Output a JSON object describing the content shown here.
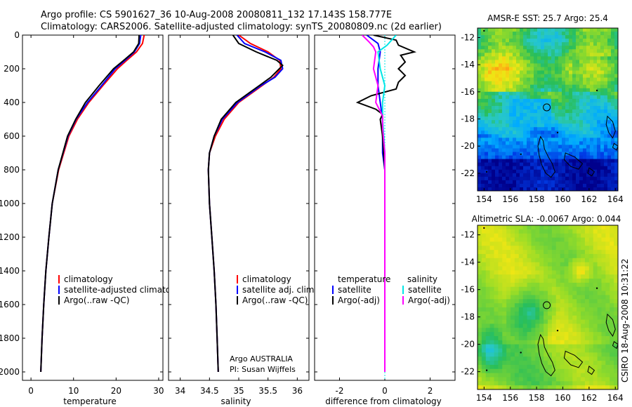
{
  "header": {
    "line1": "Argo profile: CS 5901627_36 10-Aug-2008 20080811_132 17.143S 158.777E",
    "line2": "Climatology: CARS2006. Satellite-adjusted climatology: synTS_20080809.nc (2d earlier)"
  },
  "credit": "CSIRO 18-Aug-2008 10:31:22",
  "colors": {
    "red": "#ff0000",
    "blue": "#0000ff",
    "black": "#000000",
    "cyan": "#00e6e6",
    "magenta": "#ff00ff"
  },
  "chart_data": [
    {
      "type": "line",
      "xlabel": "temperature",
      "xlim": [
        -2,
        31
      ],
      "xticks": [
        0,
        10,
        20,
        30
      ],
      "ylim": [
        2050,
        0
      ],
      "yticks": [
        0,
        200,
        400,
        600,
        800,
        1000,
        1200,
        1400,
        1600,
        1800,
        2000
      ],
      "legend": [
        "climatology",
        "satellite-adjusted climatology",
        "Argo(..raw -QC)"
      ],
      "series": [
        {
          "name": "climatology",
          "color": "red",
          "depth": [
            0,
            50,
            100,
            150,
            200,
            300,
            400,
            500,
            600,
            800,
            1000,
            1200,
            1400,
            1600,
            1800,
            2000
          ],
          "values": [
            26.6,
            26.2,
            24.8,
            22.5,
            20.3,
            16.9,
            13.6,
            10.9,
            8.9,
            6.5,
            5.0,
            4.2,
            3.5,
            3.0,
            2.6,
            2.3
          ]
        },
        {
          "name": "satellite-adjusted climatology",
          "color": "blue",
          "depth": [
            0,
            50,
            100,
            150,
            200,
            300,
            400,
            500,
            600,
            800,
            1000,
            1200,
            1400,
            1600,
            1800,
            2000
          ],
          "values": [
            25.8,
            25.5,
            24.3,
            22.1,
            19.8,
            16.6,
            13.3,
            10.6,
            8.7,
            6.4,
            5.0,
            4.2,
            3.5,
            3.0,
            2.6,
            2.3
          ]
        },
        {
          "name": "Argo(..raw -QC)",
          "color": "black",
          "depth": [
            0,
            50,
            100,
            150,
            200,
            300,
            400,
            500,
            600,
            800,
            1000,
            1200,
            1400,
            1600,
            1800,
            2000
          ],
          "values": [
            25.4,
            25.3,
            24.1,
            21.8,
            19.4,
            16.0,
            12.8,
            10.5,
            8.6,
            6.4,
            5.0,
            4.2,
            3.5,
            3.0,
            2.6,
            2.3
          ]
        }
      ]
    },
    {
      "type": "line",
      "xlabel": "salinity",
      "xlim": [
        33.8,
        36.2
      ],
      "xticks": [
        34,
        34.5,
        35,
        35.5,
        36
      ],
      "ylim": [
        2050,
        0
      ],
      "legend": [
        "climatology",
        "satellite adj. clim.",
        "Argo(..raw -QC)"
      ],
      "annotation": [
        "Argo AUSTRALIA",
        "PI: Susan Wijffels"
      ],
      "series": [
        {
          "name": "climatology",
          "color": "red",
          "depth": [
            0,
            50,
            100,
            150,
            200,
            250,
            300,
            400,
            500,
            600,
            700,
            800,
            1000,
            1200,
            1400,
            1600,
            1800,
            2000
          ],
          "values": [
            35.0,
            35.2,
            35.5,
            35.7,
            35.72,
            35.6,
            35.4,
            35.0,
            34.75,
            34.6,
            34.5,
            34.48,
            34.5,
            34.54,
            34.58,
            34.61,
            34.63,
            34.65
          ]
        },
        {
          "name": "satellite adj. clim.",
          "color": "blue",
          "depth": [
            0,
            50,
            100,
            150,
            200,
            250,
            300,
            400,
            500,
            600,
            700,
            800,
            1000,
            1200,
            1400,
            1600,
            1800,
            2000
          ],
          "values": [
            34.97,
            35.1,
            35.45,
            35.72,
            35.75,
            35.62,
            35.38,
            34.98,
            34.72,
            34.58,
            34.5,
            34.48,
            34.5,
            34.54,
            34.58,
            34.61,
            34.63,
            34.65
          ]
        },
        {
          "name": "Argo(..raw -QC)",
          "color": "black",
          "depth": [
            0,
            50,
            100,
            150,
            180,
            250,
            300,
            400,
            500,
            600,
            700,
            800,
            1000,
            1200,
            1400,
            1600,
            1800,
            2000
          ],
          "values": [
            34.9,
            35.0,
            35.3,
            35.65,
            35.75,
            35.55,
            35.35,
            34.95,
            34.7,
            34.58,
            34.5,
            34.48,
            34.5,
            34.54,
            34.58,
            34.61,
            34.63,
            34.65
          ]
        }
      ]
    },
    {
      "type": "line",
      "xlabel": "difference from climatology",
      "xlim": [
        -3.1,
        3.1
      ],
      "xticks": [
        -2,
        0,
        2
      ],
      "ylim": [
        2050,
        0
      ],
      "legend_left": [
        "temperature",
        "satellite",
        "Argo(-adj)"
      ],
      "legend_right": [
        "salinity",
        "satellite",
        "Argo(-adj)"
      ],
      "series": [
        {
          "name": "temperature satellite",
          "color": "blue",
          "depth": [
            0,
            50,
            100,
            200,
            300,
            400,
            500,
            600,
            700,
            800,
            1000,
            1500,
            2000
          ],
          "values": [
            -0.8,
            -0.3,
            -0.2,
            -0.3,
            -0.3,
            -0.2,
            -0.1,
            -0.1,
            -0.1,
            0.0,
            0.0,
            0.0,
            0.0
          ]
        },
        {
          "name": "temperature Argo(-adj)",
          "color": "black",
          "depth": [
            0,
            30,
            60,
            100,
            120,
            160,
            200,
            240,
            280,
            320,
            360,
            400,
            440,
            470,
            500,
            600,
            800,
            1000,
            2000
          ],
          "values": [
            -0.5,
            0.5,
            0.6,
            1.3,
            0.7,
            0.9,
            0.6,
            0.9,
            0.6,
            0.5,
            -0.6,
            -1.2,
            -0.4,
            -0.1,
            -0.2,
            -0.1,
            0.0,
            0.0,
            0.0
          ]
        },
        {
          "name": "salinity satellite",
          "color": "cyan",
          "depth": [
            0,
            60,
            100,
            200,
            300,
            400,
            500,
            700,
            1000,
            1500,
            2000
          ],
          "values": [
            0.5,
            0.1,
            -0.3,
            -0.2,
            0.0,
            -0.1,
            -0.1,
            0.0,
            0.0,
            0.0,
            0.0
          ]
        },
        {
          "name": "salinity Argo(-adj)",
          "color": "magenta",
          "depth": [
            0,
            40,
            70,
            100,
            200,
            300,
            400,
            480,
            550,
            700,
            1000,
            2000
          ],
          "values": [
            -1.0,
            -0.7,
            -0.5,
            -0.4,
            -0.5,
            -0.3,
            -0.4,
            -0.1,
            -0.1,
            0.0,
            0.0,
            0.0
          ]
        }
      ]
    },
    {
      "type": "heatmap",
      "title": "AMSR-E SST: 25.7 Argo: 25.4",
      "xlim": [
        153.5,
        164.2
      ],
      "ylim": [
        -23.3,
        -11.3
      ],
      "xticks": [
        154,
        156,
        158,
        160,
        162,
        164
      ],
      "yticks": [
        -12,
        -14,
        -16,
        -18,
        -20,
        -22
      ],
      "marker": {
        "lon": 158.777,
        "lat": -17.143
      }
    },
    {
      "type": "heatmap",
      "title": "Altimetric SLA: -0.0067 Argo: 0.044",
      "xlim": [
        153.5,
        164.2
      ],
      "ylim": [
        -23.3,
        -11.3
      ],
      "xticks": [
        154,
        156,
        158,
        160,
        162,
        164
      ],
      "yticks": [
        -12,
        -14,
        -16,
        -18,
        -20,
        -22
      ],
      "marker": {
        "lon": 158.777,
        "lat": -17.143
      }
    }
  ]
}
